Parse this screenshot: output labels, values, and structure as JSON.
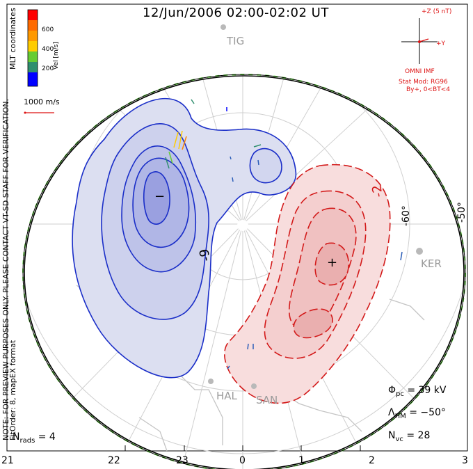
{
  "title": "12/Jun/2006 02:00-02:02 UT",
  "side_note_1": "NOTE: FOR PREVIEW PURPOSES ONLY. PLEASE CONTACT VT-SD STAFF FOR VERIFICATION.",
  "side_note_2": "FitOrder: 8, mapEX format",
  "coord_label": "MLT coordinates",
  "colorbar": {
    "label": "Vel [m/s]",
    "ticks": [
      "600",
      "400",
      "200"
    ],
    "colors": [
      "#ff0000",
      "#ff6a00",
      "#ffcc00",
      "#66cc33",
      "#2f8f6f",
      "#2b5db8",
      "#0000ff"
    ]
  },
  "scale": {
    "label": "1000 m/s"
  },
  "imf": {
    "axis_z": "+Z (5 nT)",
    "axis_y": "+Y",
    "label": "OMNI IMF",
    "model": "Stat Mod: RG96",
    "condition": "By+, 0<BT<4"
  },
  "stations": [
    "TIG",
    "KER",
    "HAL",
    "SAN"
  ],
  "latitude_labels": [
    "-60°",
    "-50°"
  ],
  "contour_labels": [
    "-9",
    "-2"
  ],
  "potential_signs": {
    "min": "−",
    "max": "+"
  },
  "stats": {
    "n_rads": "N",
    "n_rads_sub": "rads",
    "n_rads_val": "= 4",
    "phi": "Φ",
    "phi_sub": "pc",
    "phi_val": "= 39 kV",
    "lambda": "Λ",
    "lambda_sub": "HM",
    "lambda_val": "= −50°",
    "nvc": "N",
    "nvc_sub": "vc",
    "nvc_val": "= 28"
  },
  "mlt_labels": [
    "21",
    "22",
    "23",
    "0",
    "1",
    "2",
    "3"
  ],
  "colors": {
    "negative_fill": "#dcdff1",
    "positive_fill": "#f8dddd",
    "negative_line": "#1a2ec8",
    "positive_line": "#d31a1a"
  }
}
